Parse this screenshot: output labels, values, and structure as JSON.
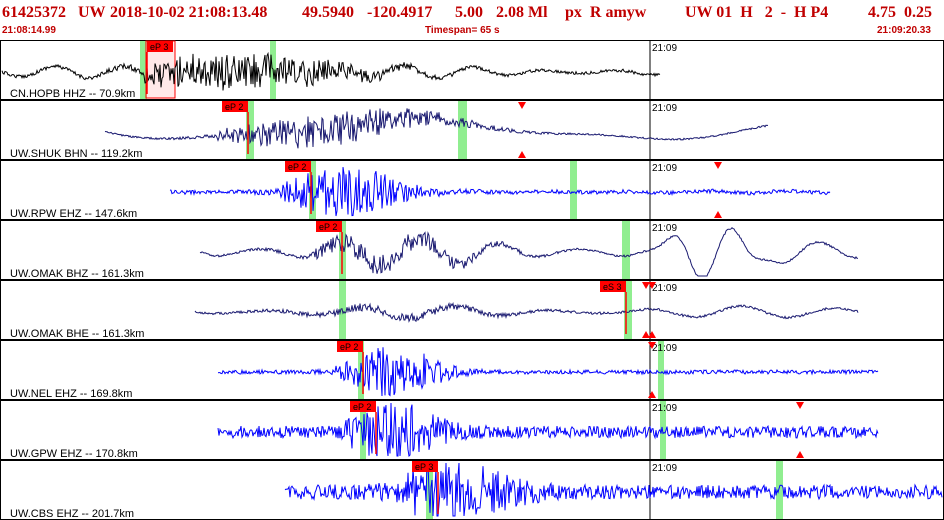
{
  "header": {
    "event_id": "61425372",
    "network": "UW",
    "datetime": "2018-10-02 21:08:13.48",
    "latitude": "49.5940",
    "longitude": "-120.4917",
    "depth": "5.00",
    "magnitude": "2.08 Ml",
    "flags": "px  R amyw",
    "flags2": "UW 01  H   2  -  H P4",
    "values": "4.75  0.25",
    "start_time": "21:08:14.99",
    "timespan_label": "Timespan=  65 s",
    "end_time": "21:09:20.33"
  },
  "colors": {
    "header_red": "#c00000",
    "pick_red": "#ff0000",
    "pick_window_green": "#90ee90",
    "trace_blue": "#0000ff",
    "trace_navy": "#191970",
    "trace_black": "#000000",
    "separator": "#000000"
  },
  "time_marker": "21:09",
  "traces": [
    {
      "label": "CN.HOPB HHZ -- 70.9km",
      "pick": "eP 3",
      "color": "trace_black",
      "pick_highlight": true
    },
    {
      "label": "UW.SHUK BHN -- 119.2km",
      "pick": "eP 2",
      "color": "trace_navy"
    },
    {
      "label": "UW.RPW EHZ -- 147.6km",
      "pick": "eP 2",
      "color": "trace_blue"
    },
    {
      "label": "UW.OMAK BHZ -- 161.3km",
      "pick": "eP 2",
      "color": "trace_navy"
    },
    {
      "label": "UW.OMAK BHE -- 161.3km",
      "pick": "eS 3",
      "color": "trace_navy"
    },
    {
      "label": "UW.NEL EHZ -- 169.8km",
      "pick": "eP 2",
      "color": "trace_blue"
    },
    {
      "label": "UW.GPW EHZ -- 170.8km",
      "pick": "eP 2",
      "color": "trace_blue"
    },
    {
      "label": "UW.CBS EHZ -- 201.7km",
      "pick": "eP 3",
      "color": "trace_blue"
    }
  ]
}
